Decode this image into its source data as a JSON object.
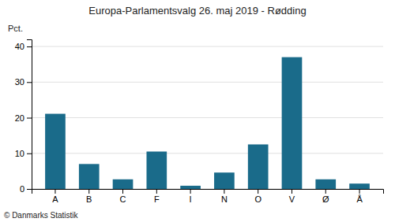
{
  "chart_data": {
    "type": "bar",
    "title": "Europa-Parlamentsvalg 26. maj 2019 - Rødding",
    "categories": [
      "A",
      "B",
      "C",
      "F",
      "I",
      "N",
      "O",
      "V",
      "Ø",
      "Å"
    ],
    "values": [
      21.1,
      7.0,
      2.7,
      10.5,
      0.9,
      4.6,
      12.5,
      37.0,
      2.7,
      1.5
    ],
    "color": "#1a6b8a",
    "ylabel": "Pct.",
    "ylim": [
      0,
      42
    ],
    "yticks": [
      0,
      10,
      20,
      30,
      40
    ],
    "grid": true,
    "annotations": [
      "© Danmarks Statistik"
    ]
  }
}
